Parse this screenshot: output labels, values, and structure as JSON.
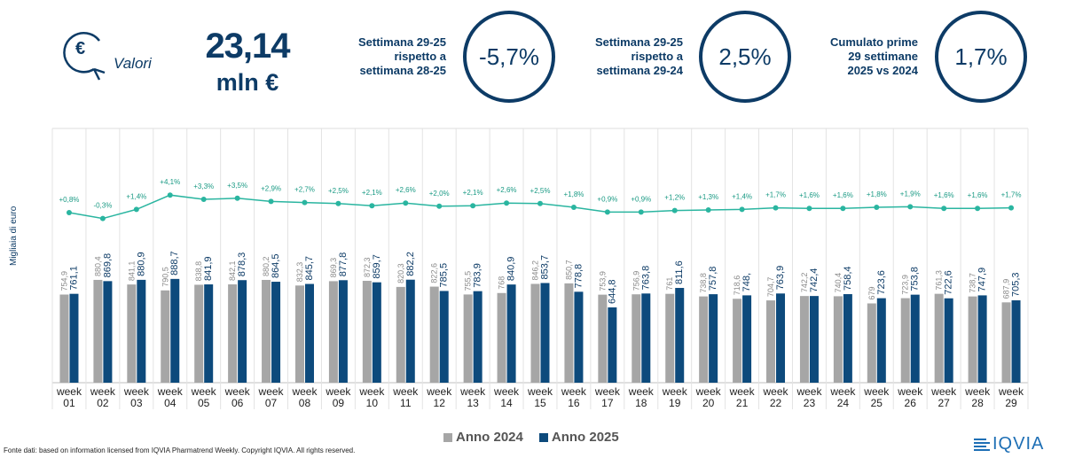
{
  "header": {
    "icon_name": "euro-down-icon",
    "label": "Valori",
    "total_value": "23,14",
    "total_unit": "mln €"
  },
  "kpis": [
    {
      "text_lines": [
        "Settimana 29-25",
        "rispetto a",
        "settimana 28-25"
      ],
      "value": "-5,7%"
    },
    {
      "text_lines": [
        "Settimana 29-25",
        "rispetto a",
        "settimana 29-24"
      ],
      "value": "2,5%"
    },
    {
      "text_lines": [
        "Cumulato prime",
        "29 settimane",
        "2025 vs 2024"
      ],
      "value": "1,7%"
    }
  ],
  "chart_data": {
    "type": "bar",
    "ylabel": "Migliaia di euro",
    "categories": [
      "week 01",
      "week 02",
      "week 03",
      "week 04",
      "week 05",
      "week 06",
      "week 07",
      "week 08",
      "week 09",
      "week 10",
      "week 11",
      "week 12",
      "week 13",
      "week 14",
      "week 15",
      "week 16",
      "week 17",
      "week 18",
      "week 19",
      "week 20",
      "week 21",
      "week 22",
      "week 23",
      "week 24",
      "week 25",
      "week 26",
      "week 27",
      "week 28",
      "week 29"
    ],
    "series": [
      {
        "name": "Anno 2024",
        "color": "#a6a6a6",
        "labels": [
          "754,9",
          "880,4",
          "841,1",
          "790,5",
          "838,8",
          "842,1",
          "880,2",
          "832,3",
          "869,3",
          "872,3",
          "820,3",
          "822,6",
          "755,5",
          "768",
          "846,2",
          "850,7",
          "753,9",
          "756,9",
          "761",
          "738,8",
          "718,6",
          "704,7",
          "742,2",
          "740,4",
          "679",
          "723,9",
          "761,3",
          "738,7",
          "687,9"
        ],
        "values": [
          754.9,
          880.4,
          841.1,
          790.5,
          838.8,
          842.1,
          880.2,
          832.3,
          869.3,
          872.3,
          820.3,
          822.6,
          755.5,
          768,
          846.2,
          850.7,
          753.9,
          756.9,
          761,
          738.8,
          718.6,
          704.7,
          742.2,
          740.4,
          679,
          723.9,
          761.3,
          738.7,
          687.9
        ]
      },
      {
        "name": "Anno 2025",
        "color": "#0d4a7c",
        "labels": [
          "761,1",
          "869,8",
          "880,9",
          "888,7",
          "841,9",
          "878,3",
          "864,5",
          "845,7",
          "877,8",
          "859,7",
          "882,2",
          "785,5",
          "783,9",
          "840,9",
          "853,7",
          "778,8",
          "644,8",
          "763,8",
          "811,6",
          "757,8",
          "748,",
          "763,9",
          "742,4",
          "758,4",
          "723,6",
          "753,8",
          "722,6",
          "747,9",
          "705,3"
        ],
        "values": [
          761.1,
          869.8,
          880.9,
          888.7,
          841.9,
          878.3,
          864.5,
          845.7,
          877.8,
          859.7,
          882.2,
          785.5,
          783.9,
          840.9,
          853.7,
          778.8,
          644.8,
          763.8,
          811.6,
          757.8,
          748,
          763.9,
          742.4,
          758.4,
          723.6,
          753.8,
          722.6,
          747.9,
          705.3
        ]
      }
    ],
    "growth": {
      "name": "growth",
      "color": "#2ab5a0",
      "labels": [
        "+0,8%",
        "-0,3%",
        "+1,4%",
        "+4,1%",
        "+3,3%",
        "+3,5%",
        "+2,9%",
        "+2,7%",
        "+2,5%",
        "+2,1%",
        "+2,6%",
        "+2,0%",
        "+2,1%",
        "+2,6%",
        "+2,5%",
        "+1,8%",
        "+0,9%",
        "+0,9%",
        "+1,2%",
        "+1,3%",
        "+1,4%",
        "+1,7%",
        "+1,6%",
        "+1,6%",
        "+1,8%",
        "+1,9%",
        "+1,6%",
        "+1,6%",
        "+1,7%"
      ],
      "values": [
        0.8,
        -0.3,
        1.4,
        4.1,
        3.3,
        3.5,
        2.9,
        2.7,
        2.5,
        2.1,
        2.6,
        2.0,
        2.1,
        2.6,
        2.5,
        1.8,
        0.9,
        0.9,
        1.2,
        1.3,
        1.4,
        1.7,
        1.6,
        1.6,
        1.8,
        1.9,
        1.6,
        1.6,
        1.7
      ]
    },
    "ylim": [
      0,
      1100
    ],
    "legend_position": "bottom-center"
  },
  "footer": {
    "source": "Fonte dati: based on information licensed from IQVIA Pharmatrend Weekly. Copyright IQVIA. All rights reserved.",
    "logo_text": "IQVIA"
  }
}
